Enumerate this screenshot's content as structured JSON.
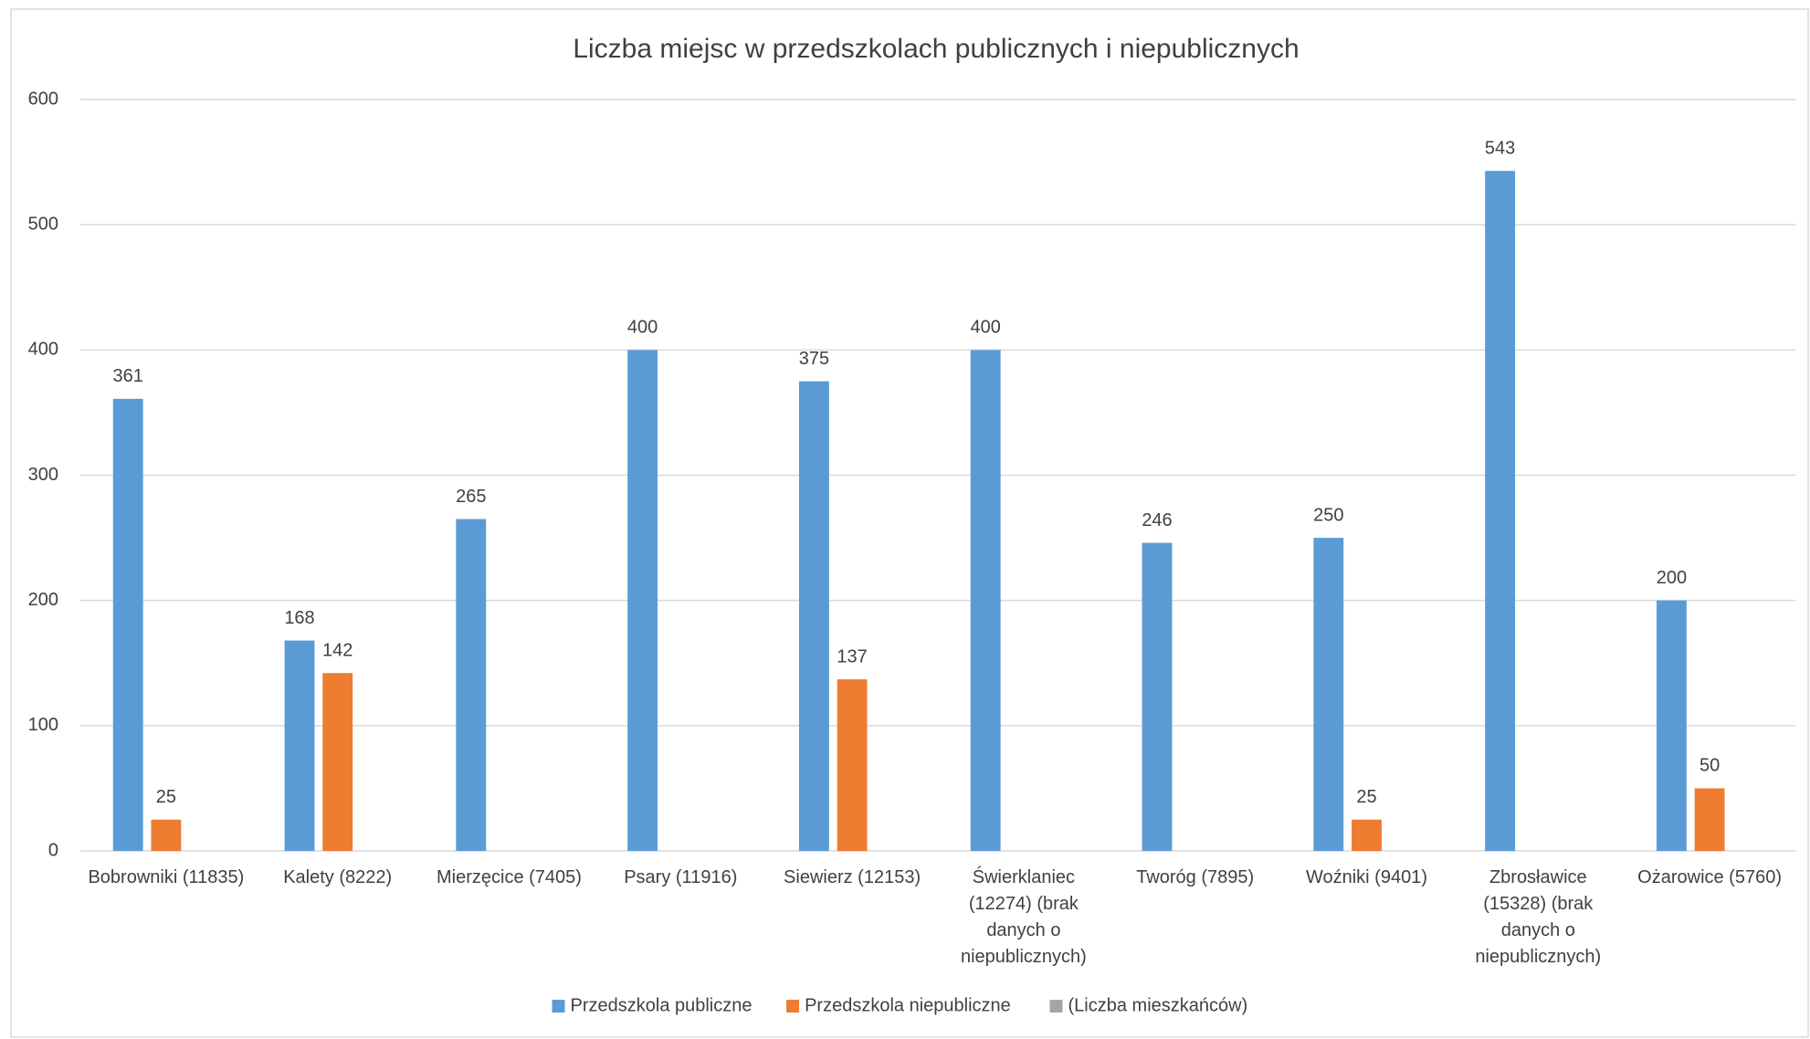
{
  "chart_data": {
    "type": "bar",
    "title": "Liczba miejsc w przedszkolach publicznych i niepublicznych",
    "categories": [
      "Bobrowniki (11835)",
      "Kalety (8222)",
      "Mierzęcice (7405)",
      "Psary (11916)",
      "Siewierz (12153)",
      "Świerklaniec (12274) (brak danych o niepublicznych)",
      "Tworóg (7895)",
      "Woźniki (9401)",
      "Zbrosławice (15328) (brak danych o niepublicznych)",
      "Ożarowice (5760)"
    ],
    "series": [
      {
        "name": "Przedszkola publiczne",
        "color": "#5b9bd5",
        "values": [
          361,
          168,
          265,
          400,
          375,
          400,
          246,
          250,
          543,
          200
        ]
      },
      {
        "name": "Przedszkola niepubliczne",
        "color": "#ed7d31",
        "values": [
          25,
          142,
          null,
          null,
          137,
          null,
          null,
          25,
          null,
          50
        ]
      },
      {
        "name": "(Liczba mieszkańców)",
        "color": "#a5a5a5",
        "values": [
          null,
          null,
          null,
          null,
          null,
          null,
          null,
          null,
          null,
          null
        ]
      }
    ],
    "ylim": [
      0,
      600
    ],
    "yticks": [
      0,
      100,
      200,
      300,
      400,
      500,
      600
    ],
    "grid": true,
    "legend": "bottom"
  }
}
